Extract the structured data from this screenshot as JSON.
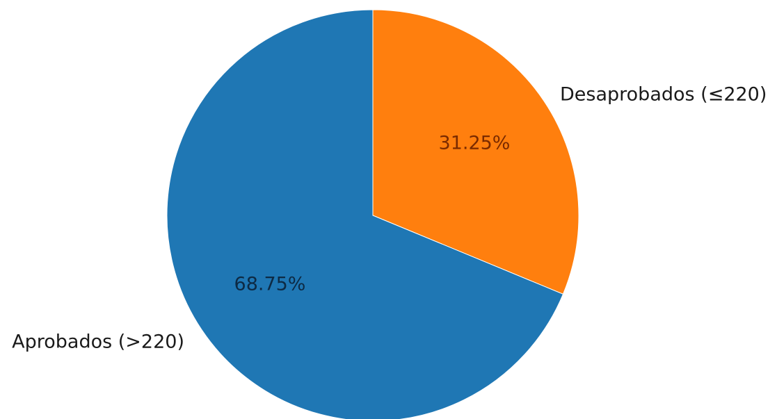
{
  "chart_data": {
    "type": "pie",
    "categories": [
      "Desaprobados (≤220)",
      "Aprobados (>220)"
    ],
    "values": [
      31.25,
      68.75
    ],
    "value_labels": [
      "31.25%",
      "68.75%"
    ],
    "colors": [
      "#ff7f0e",
      "#1f77b4"
    ],
    "label_colors": [
      "#7a2a00",
      "#0d2a44"
    ],
    "start_angle_deg": 90,
    "direction": "clockwise",
    "title": "",
    "legend": "none"
  }
}
